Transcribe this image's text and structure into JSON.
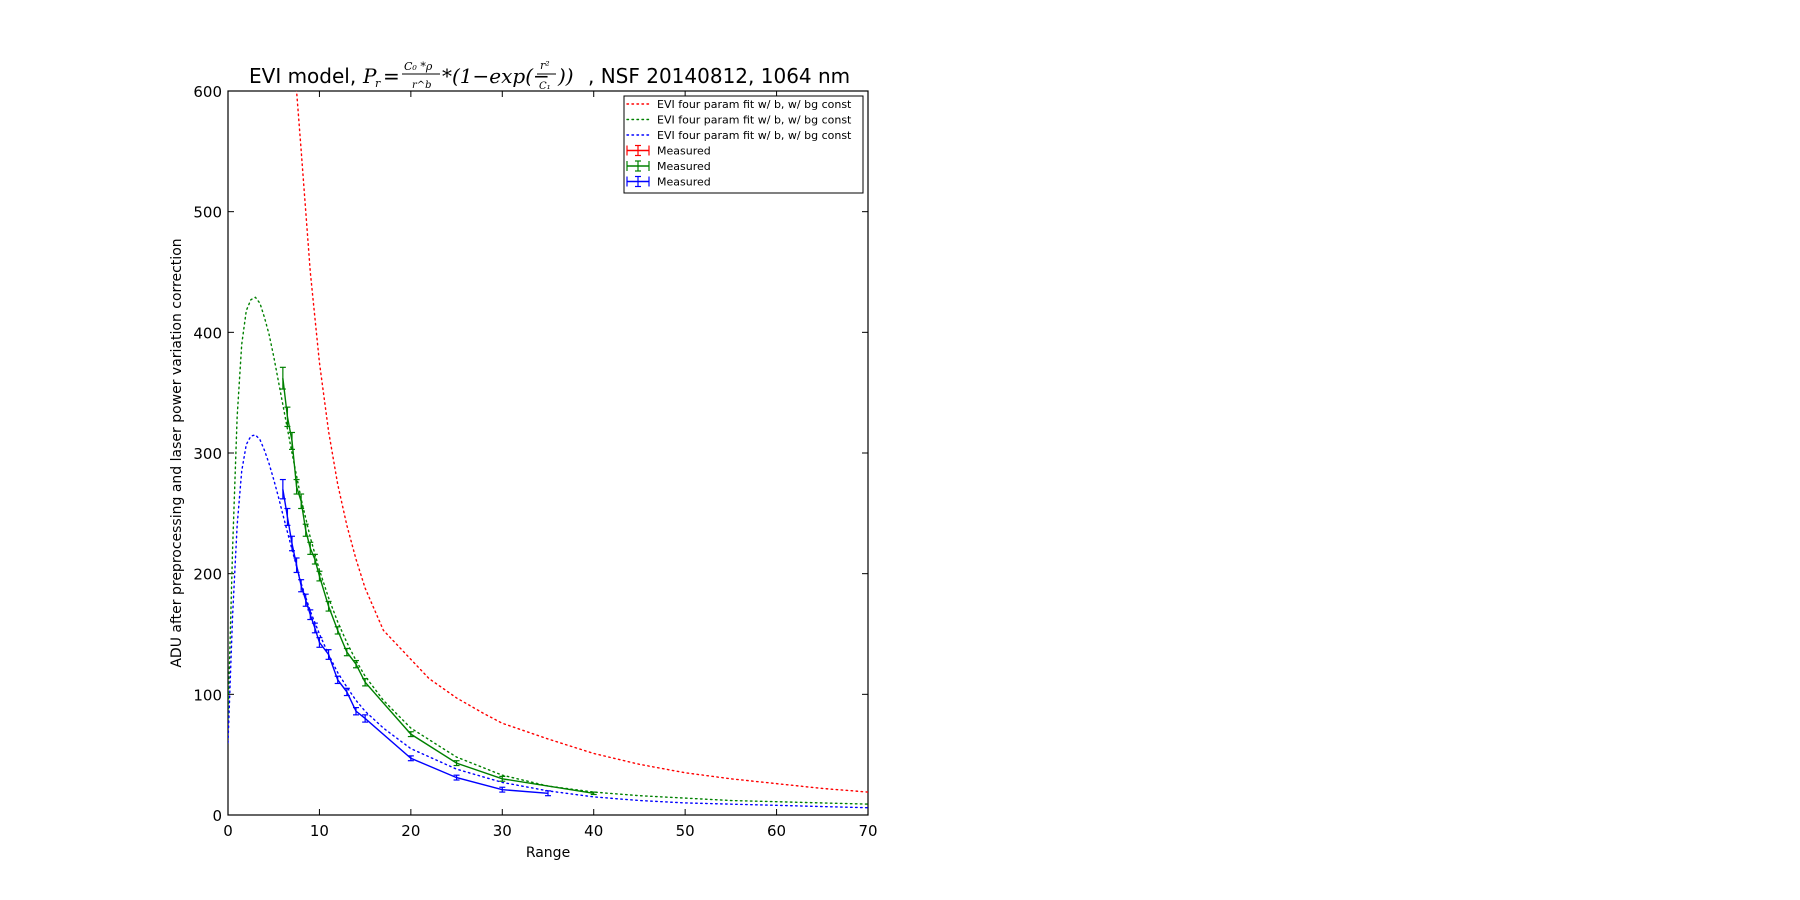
{
  "chart_data": {
    "type": "line",
    "title": {
      "prefix": "EVI model, ",
      "formula_lhs": "P",
      "formula_lhs_sub": "r",
      "formula_num": "C₀ *ρ",
      "formula_den": "r^b",
      "formula_tail_a": "*(1−exp(−",
      "formula_tail_num": "r²",
      "formula_tail_den": "C₁",
      "formula_tail_b": "))",
      "suffix": ", NSF 20140812, 1064 nm"
    },
    "xlabel": "Range",
    "ylabel": "ADU after preprocessing and laser power variation correction",
    "xlim": [
      0,
      70
    ],
    "ylim": [
      0,
      600
    ],
    "xticks": [
      0,
      10,
      20,
      30,
      40,
      50,
      60,
      70
    ],
    "yticks": [
      0,
      100,
      200,
      300,
      400,
      500,
      600
    ],
    "grid": false,
    "legend_position": "top-right",
    "legend": [
      {
        "label": "EVI four param fit w/ b, w/ bg const",
        "color": "#ff0000",
        "style": "dotted"
      },
      {
        "label": "EVI four param fit w/ b, w/ bg const",
        "color": "#008000",
        "style": "dotted"
      },
      {
        "label": "EVI four param fit w/ b, w/ bg const",
        "color": "#0000ff",
        "style": "dotted"
      },
      {
        "label": "Measured",
        "color": "#ff0000",
        "style": "errorbar"
      },
      {
        "label": "Measured",
        "color": "#008000",
        "style": "errorbar"
      },
      {
        "label": "Measured",
        "color": "#0000ff",
        "style": "errorbar"
      }
    ],
    "fits": [
      {
        "color": "#ff0000",
        "x": [
          0.1,
          0.2,
          0.3,
          7,
          7.5,
          8,
          9,
          10,
          11,
          12,
          13,
          14,
          15,
          17,
          20,
          22,
          25,
          28,
          30,
          35,
          40,
          45,
          50,
          55,
          60,
          65,
          70
        ],
        "y": [
          620,
          610,
          602,
          640,
          600,
          551,
          450,
          375,
          318,
          274,
          240,
          212,
          188,
          153,
          129,
          113,
          97,
          84,
          76,
          63,
          51,
          42,
          35,
          30,
          26,
          22,
          19
        ]
      },
      {
        "color": "#008000",
        "x": [
          0,
          0.5,
          1,
          1.5,
          2,
          2.5,
          3,
          3.5,
          4,
          4.5,
          5,
          5.5,
          6,
          7,
          8,
          9,
          10,
          11,
          12,
          13,
          14,
          15,
          17,
          20,
          25,
          30,
          35,
          40,
          45,
          50,
          55,
          60,
          65,
          70
        ],
        "y": [
          80,
          220,
          330,
          390,
          418,
          427,
          429,
          424,
          412,
          398,
          380,
          360,
          340,
          300,
          262,
          230,
          203,
          180,
          160,
          143,
          128,
          115,
          95,
          72,
          48,
          33,
          24,
          19,
          16,
          14,
          12,
          11,
          10,
          9
        ]
      },
      {
        "color": "#0000ff",
        "x": [
          0,
          0.5,
          1,
          1.5,
          2,
          2.5,
          3,
          3.5,
          4,
          4.5,
          5,
          5.5,
          6,
          7,
          8,
          9,
          10,
          11,
          12,
          13,
          14,
          15,
          17,
          20,
          25,
          30,
          35,
          40,
          45,
          50,
          55,
          60,
          65,
          70
        ],
        "y": [
          60,
          165,
          240,
          285,
          307,
          314,
          315,
          311,
          302,
          291,
          278,
          264,
          249,
          220,
          192,
          169,
          150,
          133,
          118,
          106,
          95,
          86,
          72,
          55,
          38,
          27,
          20,
          15,
          12,
          10,
          9,
          8,
          7,
          6
        ]
      }
    ],
    "series": [
      {
        "color": "#ff0000",
        "x": [],
        "y": [],
        "err": []
      },
      {
        "color": "#008000",
        "x": [
          6,
          6.5,
          7,
          7.5,
          8,
          8.5,
          9,
          9.5,
          10,
          11,
          12,
          13,
          14,
          15,
          20,
          25,
          30,
          40
        ],
        "y": [
          362,
          330,
          310,
          272,
          260,
          236,
          221,
          212,
          198,
          173,
          153,
          135,
          125,
          110,
          67,
          43,
          30,
          18
        ],
        "err": [
          9,
          8,
          7,
          6,
          6,
          5,
          5,
          4,
          4,
          4,
          3,
          3,
          3,
          3,
          2,
          2,
          2,
          1
        ]
      },
      {
        "color": "#0000ff",
        "x": [
          6,
          6.5,
          7,
          7.5,
          8,
          8.5,
          9,
          9.5,
          10,
          11,
          12,
          13,
          14,
          15,
          20,
          25,
          30,
          35
        ],
        "y": [
          270,
          247,
          225,
          207,
          190,
          178,
          166,
          155,
          143,
          133,
          112,
          102,
          86,
          80,
          47,
          31,
          21,
          18
        ],
        "err": [
          8,
          7,
          6,
          6,
          5,
          5,
          4,
          4,
          4,
          4,
          3,
          3,
          3,
          3,
          2,
          2,
          2,
          2
        ]
      }
    ]
  }
}
